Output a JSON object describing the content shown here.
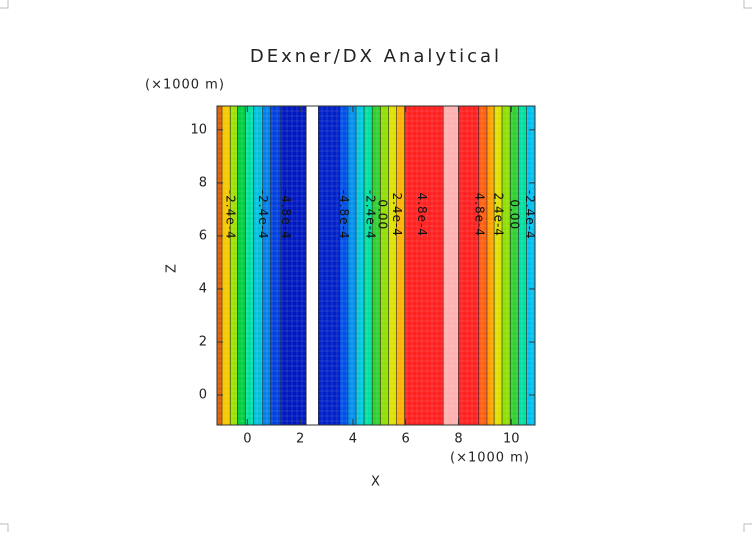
{
  "chart_data": {
    "type": "filled-contour",
    "title": "DExner/DX Analytical",
    "x_label": "X",
    "y_label": "Z",
    "x_unit": "(×1000 m)",
    "y_unit": "(×1000 m)",
    "xlim": [
      -1.15,
      10.9
    ],
    "ylim": [
      -1.13,
      10.9
    ],
    "xticks": [
      0,
      2,
      4,
      6,
      8,
      10
    ],
    "yticks": [
      0,
      2,
      4,
      6,
      8,
      10
    ],
    "band_edges": [
      -1.15,
      -0.96,
      -0.65,
      -0.38,
      -0.08,
      0.23,
      0.58,
      0.88,
      1.27,
      2.23,
      2.69,
      3.5,
      3.81,
      4.12,
      4.42,
      4.73,
      5.04,
      5.35,
      5.65,
      5.96,
      7.42,
      8.0,
      8.77,
      9.08,
      9.35,
      9.65,
      9.96,
      10.27,
      10.58,
      10.9
    ],
    "band_colors": [
      "#e06010",
      "#f5c800",
      "#a0e000",
      "#00d040",
      "#00e0a0",
      "#00c0e0",
      "#0080f0",
      "#0040e0",
      "#0018c0",
      "#ffffff",
      "#0020c8",
      "#0050e8",
      "#0090f0",
      "#00c8e0",
      "#00e0a0",
      "#30d030",
      "#90e000",
      "#e0e000",
      "#ffb000",
      "#ff2020",
      "#ffb0b0",
      "#ff2020",
      "#ff6010",
      "#ffa000",
      "#e0e000",
      "#90e000",
      "#30d030",
      "#00e0a0",
      "#00c0f0"
    ],
    "contour_labels": [
      {
        "text": "-2.4e-4",
        "x": -0.65
      },
      {
        "text": "-2.4e-4",
        "x": 0.58
      },
      {
        "text": "-4.8e-4",
        "x": 1.45
      },
      {
        "text": "-4.8e-4",
        "x": 3.65
      },
      {
        "text": "-2.4e-4",
        "x": 4.65
      },
      {
        "text": "0.00",
        "x": 5.1
      },
      {
        "text": "2.4e-4",
        "x": 5.65
      },
      {
        "text": "4.8e-4",
        "x": 6.6
      },
      {
        "text": "4.8e-4",
        "x": 8.77
      },
      {
        "text": "2.4e-4",
        "x": 9.5
      },
      {
        "text": "0.00",
        "x": 10.1
      },
      {
        "text": "-2.4e-4",
        "x": 10.7
      }
    ]
  }
}
